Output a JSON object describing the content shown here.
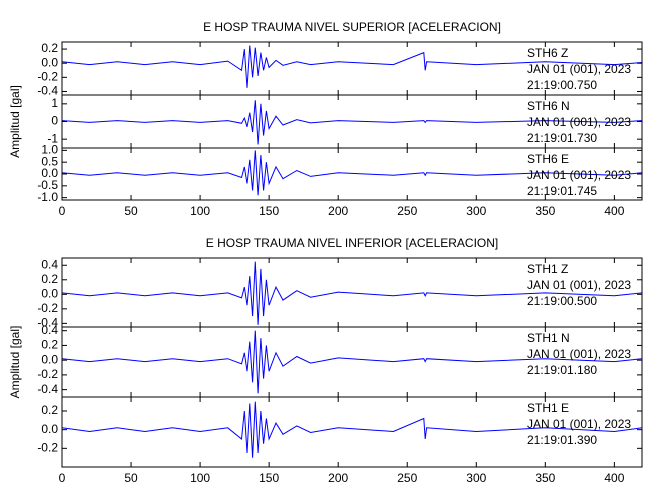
{
  "chart_data": [
    {
      "type": "line",
      "title": "E HOSP TRAUMA NIVEL SUPERIOR [ACELERACION]",
      "annotations": [
        "STH6   Z",
        "JAN 01 (001), 2023",
        "21:19:00.750"
      ],
      "x": [
        0,
        20,
        40,
        60,
        80,
        100,
        120,
        130,
        132,
        134,
        136,
        138,
        140,
        142,
        144,
        146,
        148,
        150,
        155,
        160,
        170,
        180,
        200,
        240,
        262,
        263,
        264,
        300,
        350,
        400,
        420
      ],
      "values": [
        0.02,
        -0.02,
        0.02,
        -0.02,
        0.02,
        -0.02,
        0.03,
        -0.1,
        0.2,
        -0.35,
        0.25,
        -0.2,
        0.22,
        -0.18,
        0.15,
        -0.1,
        0.08,
        -0.06,
        0.04,
        -0.03,
        0.02,
        -0.02,
        0.02,
        -0.02,
        0.15,
        -0.1,
        0.02,
        -0.02,
        0.02,
        -0.02,
        0.01
      ],
      "color": "#0000ff",
      "xlim": [
        0,
        420
      ],
      "ylim": [
        -0.45,
        0.3
      ],
      "yticks": [
        -0.4,
        -0.2,
        {
          "value": 0,
          "label": "0.0"
        },
        0.2
      ]
    },
    {
      "type": "line",
      "ylabel": "Amplitud [gal]",
      "annotations": [
        "STH6   N",
        "JAN 01 (001), 2023",
        "21:19:01.730"
      ],
      "x": [
        0,
        20,
        40,
        60,
        80,
        100,
        120,
        130,
        132,
        134,
        136,
        138,
        140,
        142,
        144,
        146,
        148,
        150,
        155,
        160,
        170,
        180,
        200,
        240,
        262,
        263,
        264,
        300,
        350,
        400,
        420
      ],
      "values": [
        0.05,
        -0.05,
        0.05,
        -0.05,
        0.05,
        -0.05,
        0.05,
        -0.1,
        0.2,
        -0.3,
        0.5,
        -0.6,
        1.2,
        -1.3,
        1.0,
        -0.8,
        0.6,
        -0.4,
        0.3,
        -0.2,
        0.1,
        -0.08,
        0.05,
        -0.05,
        0.05,
        -0.05,
        0.05,
        -0.05,
        0.05,
        -0.05,
        0.05
      ],
      "color": "#0000ff",
      "xlim": [
        0,
        420
      ],
      "ylim": [
        -1.5,
        1.5
      ],
      "yticks": [
        -1,
        0,
        1
      ]
    },
    {
      "type": "line",
      "annotations": [
        "STH6   E",
        "JAN 01 (001), 2023",
        "21:19:01.745"
      ],
      "x": [
        0,
        20,
        40,
        60,
        80,
        100,
        120,
        130,
        132,
        134,
        136,
        138,
        140,
        142,
        144,
        146,
        148,
        150,
        155,
        160,
        170,
        180,
        200,
        240,
        262,
        263,
        264,
        300,
        350,
        400,
        420
      ],
      "values": [
        0.05,
        -0.05,
        0.05,
        -0.05,
        0.05,
        -0.05,
        0.05,
        -0.15,
        0.3,
        -0.4,
        0.6,
        -0.7,
        1.0,
        -0.9,
        0.8,
        -0.7,
        0.5,
        -0.4,
        0.3,
        -0.2,
        0.15,
        -0.1,
        0.05,
        -0.05,
        0.05,
        -0.05,
        0.05,
        -0.05,
        0.05,
        -0.05,
        0.05
      ],
      "color": "#0000ff",
      "xlim": [
        0,
        420
      ],
      "ylim": [
        -1.1,
        1.1
      ],
      "yticks": [
        {
          "value": -1,
          "label": "-1.0"
        },
        -0.5,
        {
          "value": 0,
          "label": "0.0"
        },
        0.5,
        {
          "value": 1,
          "label": "1.0"
        }
      ],
      "xticks": [
        0,
        50,
        100,
        150,
        200,
        250,
        300,
        350,
        400
      ]
    },
    {
      "type": "line",
      "title": "E HOSP TRAUMA NIVEL INFERIOR [ACELERACION]",
      "annotations": [
        "STH1   Z",
        "JAN 01 (001), 2023",
        "21:19:00.500"
      ],
      "x": [
        0,
        20,
        40,
        60,
        80,
        100,
        120,
        130,
        132,
        134,
        136,
        138,
        140,
        142,
        144,
        146,
        148,
        150,
        155,
        160,
        170,
        180,
        200,
        240,
        262,
        263,
        264,
        300,
        350,
        400,
        420
      ],
      "values": [
        0.02,
        -0.02,
        0.02,
        -0.02,
        0.02,
        -0.02,
        0.02,
        -0.05,
        0.1,
        -0.15,
        0.25,
        -0.3,
        0.45,
        -0.42,
        0.35,
        -0.3,
        0.2,
        -0.15,
        0.1,
        -0.08,
        0.05,
        -0.04,
        0.03,
        -0.02,
        0.02,
        -0.02,
        0.02,
        -0.02,
        0.02,
        -0.02,
        0.02
      ],
      "color": "#0000ff",
      "xlim": [
        0,
        420
      ],
      "ylim": [
        -0.45,
        0.5
      ],
      "yticks": [
        -0.4,
        -0.2,
        {
          "value": 0,
          "label": "0.0"
        },
        0.2,
        0.4
      ]
    },
    {
      "type": "line",
      "ylabel": "Amplitud [gal]",
      "annotations": [
        "STH1   N",
        "JAN 01 (001), 2023",
        "21:19:01.180"
      ],
      "x": [
        0,
        20,
        40,
        60,
        80,
        100,
        120,
        130,
        132,
        134,
        136,
        138,
        140,
        142,
        144,
        146,
        148,
        150,
        155,
        160,
        170,
        180,
        200,
        240,
        262,
        263,
        264,
        300,
        350,
        400,
        420
      ],
      "values": [
        0.02,
        -0.02,
        0.02,
        -0.02,
        0.02,
        -0.02,
        0.02,
        -0.05,
        0.1,
        -0.15,
        0.25,
        -0.3,
        0.4,
        -0.45,
        0.3,
        -0.25,
        0.2,
        -0.15,
        0.1,
        -0.08,
        0.05,
        -0.04,
        0.03,
        -0.02,
        0.02,
        -0.02,
        0.02,
        -0.02,
        0.02,
        -0.02,
        0.02
      ],
      "color": "#0000ff",
      "xlim": [
        0,
        420
      ],
      "ylim": [
        -0.5,
        0.45
      ],
      "yticks": [
        -0.4,
        -0.2,
        {
          "value": 0,
          "label": "0.0"
        },
        0.2,
        0.4
      ]
    },
    {
      "type": "line",
      "annotations": [
        "STH1   E",
        "JAN 01 (001), 2023",
        "21:19:01.390"
      ],
      "x": [
        0,
        20,
        40,
        60,
        80,
        100,
        120,
        130,
        132,
        134,
        136,
        138,
        140,
        142,
        144,
        146,
        148,
        150,
        155,
        160,
        170,
        180,
        200,
        240,
        262,
        263,
        264,
        300,
        350,
        400,
        420
      ],
      "values": [
        0.02,
        -0.02,
        0.02,
        -0.02,
        0.02,
        -0.02,
        0.02,
        -0.1,
        0.2,
        -0.25,
        0.28,
        -0.3,
        0.3,
        -0.25,
        0.2,
        -0.15,
        0.12,
        -0.1,
        0.07,
        -0.05,
        0.04,
        -0.03,
        0.02,
        -0.02,
        0.12,
        -0.1,
        0.02,
        -0.02,
        0.02,
        -0.02,
        0.02
      ],
      "color": "#0000ff",
      "xlim": [
        0,
        420
      ],
      "ylim": [
        -0.4,
        0.35
      ],
      "yticks": [
        -0.2,
        {
          "value": 0,
          "label": "0.0"
        },
        0.2
      ],
      "xticks": [
        0,
        50,
        100,
        150,
        200,
        250,
        300,
        350,
        400
      ]
    }
  ]
}
